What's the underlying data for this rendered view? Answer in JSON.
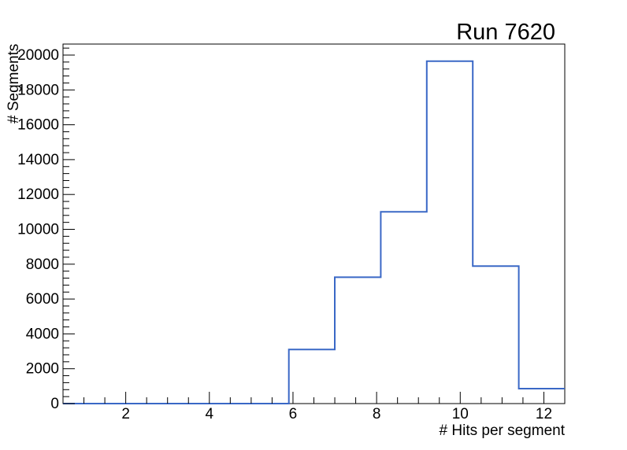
{
  "window": {
    "background": "#ffffff"
  },
  "chart_data": {
    "type": "bar",
    "subtype": "step-histogram",
    "title": "Run 7620",
    "xlabel": "# Hits per segment",
    "ylabel": "# Segments",
    "xlim": [
      0.5,
      12.5
    ],
    "ylim": [
      0,
      20632
    ],
    "grid": false,
    "legend": false,
    "line_color": "#3a68c6",
    "frame_color": "#000000",
    "text_color": "#000000",
    "x_tick_labels": [
      "2",
      "4",
      "6",
      "8",
      "10",
      "12"
    ],
    "x_major_tick_values": [
      2,
      4,
      6,
      8,
      10,
      12
    ],
    "x_minor_step": 0.5,
    "y_tick_labels": [
      "0",
      "2000",
      "4000",
      "6000",
      "8000",
      "10000",
      "12000",
      "14000",
      "16000",
      "18000",
      "20000"
    ],
    "y_major_tick_values": [
      0,
      2000,
      4000,
      6000,
      8000,
      10000,
      12000,
      14000,
      16000,
      18000,
      20000
    ],
    "y_minor_step": 400,
    "bins": [
      {
        "x_low": 0.5,
        "x_high": 5.9,
        "count": 0
      },
      {
        "x_low": 5.9,
        "x_high": 7.0,
        "count": 3100
      },
      {
        "x_low": 7.0,
        "x_high": 8.1,
        "count": 7250
      },
      {
        "x_low": 8.1,
        "x_high": 9.2,
        "count": 11000
      },
      {
        "x_low": 9.2,
        "x_high": 10.3,
        "count": 19650
      },
      {
        "x_low": 10.3,
        "x_high": 11.4,
        "count": 7890
      },
      {
        "x_low": 11.4,
        "x_high": 12.5,
        "count": 860
      }
    ]
  }
}
